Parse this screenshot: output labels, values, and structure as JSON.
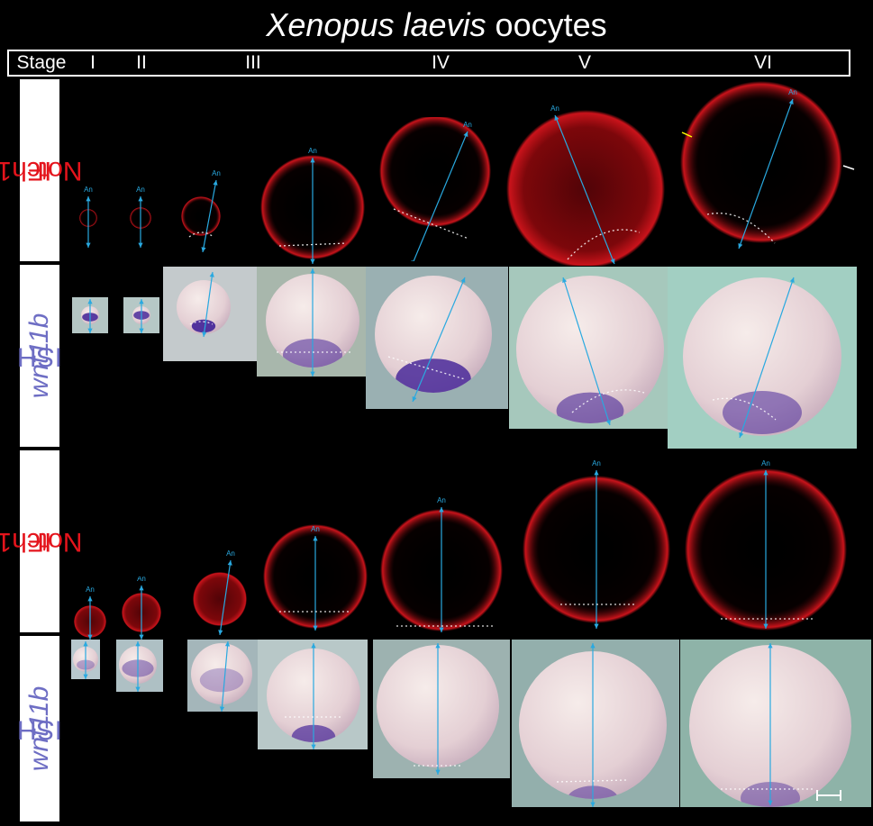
{
  "title": {
    "species": "Xenopus laevis",
    "rest": "oocytes"
  },
  "stage_header": {
    "label": "Stage",
    "stages": [
      "I",
      "II",
      "III",
      "IV",
      "V",
      "VI"
    ]
  },
  "rows": [
    {
      "marker": "Notch1",
      "method": "IF",
      "color": "#e4141c"
    },
    {
      "marker": "wnt11b",
      "method": "ISH",
      "color": "#6e6ec4"
    },
    {
      "marker": "Notch1",
      "method": "IF",
      "color": "#e4141c"
    },
    {
      "marker": "wnt11b",
      "method": "ISH",
      "color": "#6e6ec4"
    }
  ],
  "axis_label": "An",
  "colors": {
    "arrow": "#29a9e0",
    "if_signal": "#d4141c",
    "ish_stain": "#4a2a9a",
    "background": "#000000"
  }
}
